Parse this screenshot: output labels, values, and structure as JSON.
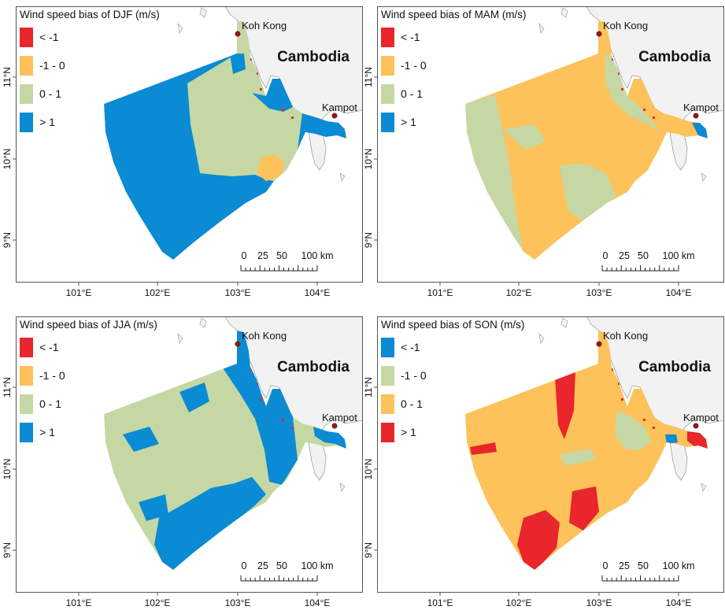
{
  "colors": {
    "red": "#e8262b",
    "orange": "#fdc25a",
    "green": "#c5d8a4",
    "blue": "#0a8bd3",
    "land": "#f2f2f2",
    "coast": "#a0a0a0",
    "city": "#a50f15"
  },
  "country_label": "Cambodia",
  "cities": {
    "koh_kong": "Koh Kong",
    "kampot": "Kampot"
  },
  "lon_ticks": [
    "101°E",
    "102°E",
    "103°E",
    "104°E"
  ],
  "lat_ticks": [
    "11°N",
    "10°N",
    "9°N"
  ],
  "scale_bar": {
    "labels": [
      "0",
      "25",
      "50",
      "100 km"
    ]
  },
  "panels": [
    {
      "id": "djf",
      "title": "Wind speed bias of DJF (m/s)",
      "legend": [
        {
          "label": "< -1",
          "color": "red"
        },
        {
          "label": "-1 - 0",
          "color": "orange"
        },
        {
          "label": "0 - 1",
          "color": "green"
        },
        {
          "label": "> 1",
          "color": "blue"
        }
      ]
    },
    {
      "id": "mam",
      "title": "Wind speed bias of MAM (m/s)",
      "legend": [
        {
          "label": "< -1",
          "color": "red"
        },
        {
          "label": "-1 - 0",
          "color": "orange"
        },
        {
          "label": "0 - 1",
          "color": "green"
        },
        {
          "label": "> 1",
          "color": "blue"
        }
      ]
    },
    {
      "id": "jja",
      "title": "Wind speed bias of JJA (m/s)",
      "legend": [
        {
          "label": "< -1",
          "color": "red"
        },
        {
          "label": "-1 - 0",
          "color": "orange"
        },
        {
          "label": "0 - 1",
          "color": "green"
        },
        {
          "label": "> 1",
          "color": "blue"
        }
      ]
    },
    {
      "id": "son",
      "title": "Wind speed bias of SON (m/s)",
      "legend": [
        {
          "label": "< -1",
          "color": "blue"
        },
        {
          "label": "-1 - 0",
          "color": "green"
        },
        {
          "label": "0 - 1",
          "color": "orange"
        },
        {
          "label": "> 1",
          "color": "red"
        }
      ]
    }
  ]
}
